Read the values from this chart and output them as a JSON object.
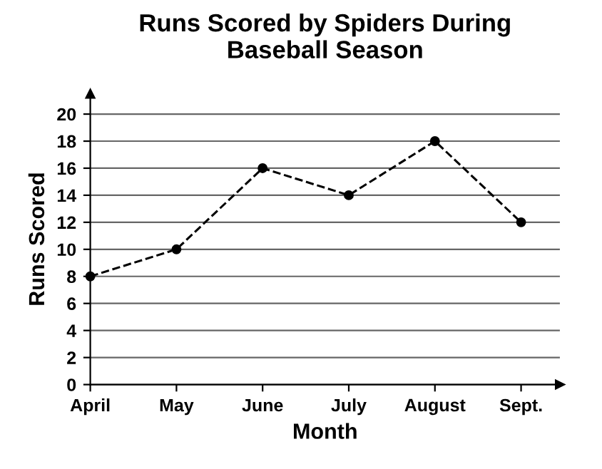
{
  "chart_data": {
    "type": "line",
    "title": "Runs Scored by Spiders During\nBaseball Season",
    "xlabel": "Month",
    "ylabel": "Runs Scored",
    "categories": [
      "April",
      "May",
      "June",
      "July",
      "August",
      "Sept."
    ],
    "series": [
      {
        "color": "#000000",
        "values": [
          8,
          10,
          16,
          14,
          18,
          12
        ]
      }
    ],
    "ylim": [
      0,
      21.5
    ],
    "yticks": [
      0,
      2,
      4,
      6,
      8,
      10,
      12,
      14,
      16,
      18,
      20
    ],
    "grid": "y",
    "marker": "circle",
    "line_style": "dashed",
    "legend": false
  }
}
